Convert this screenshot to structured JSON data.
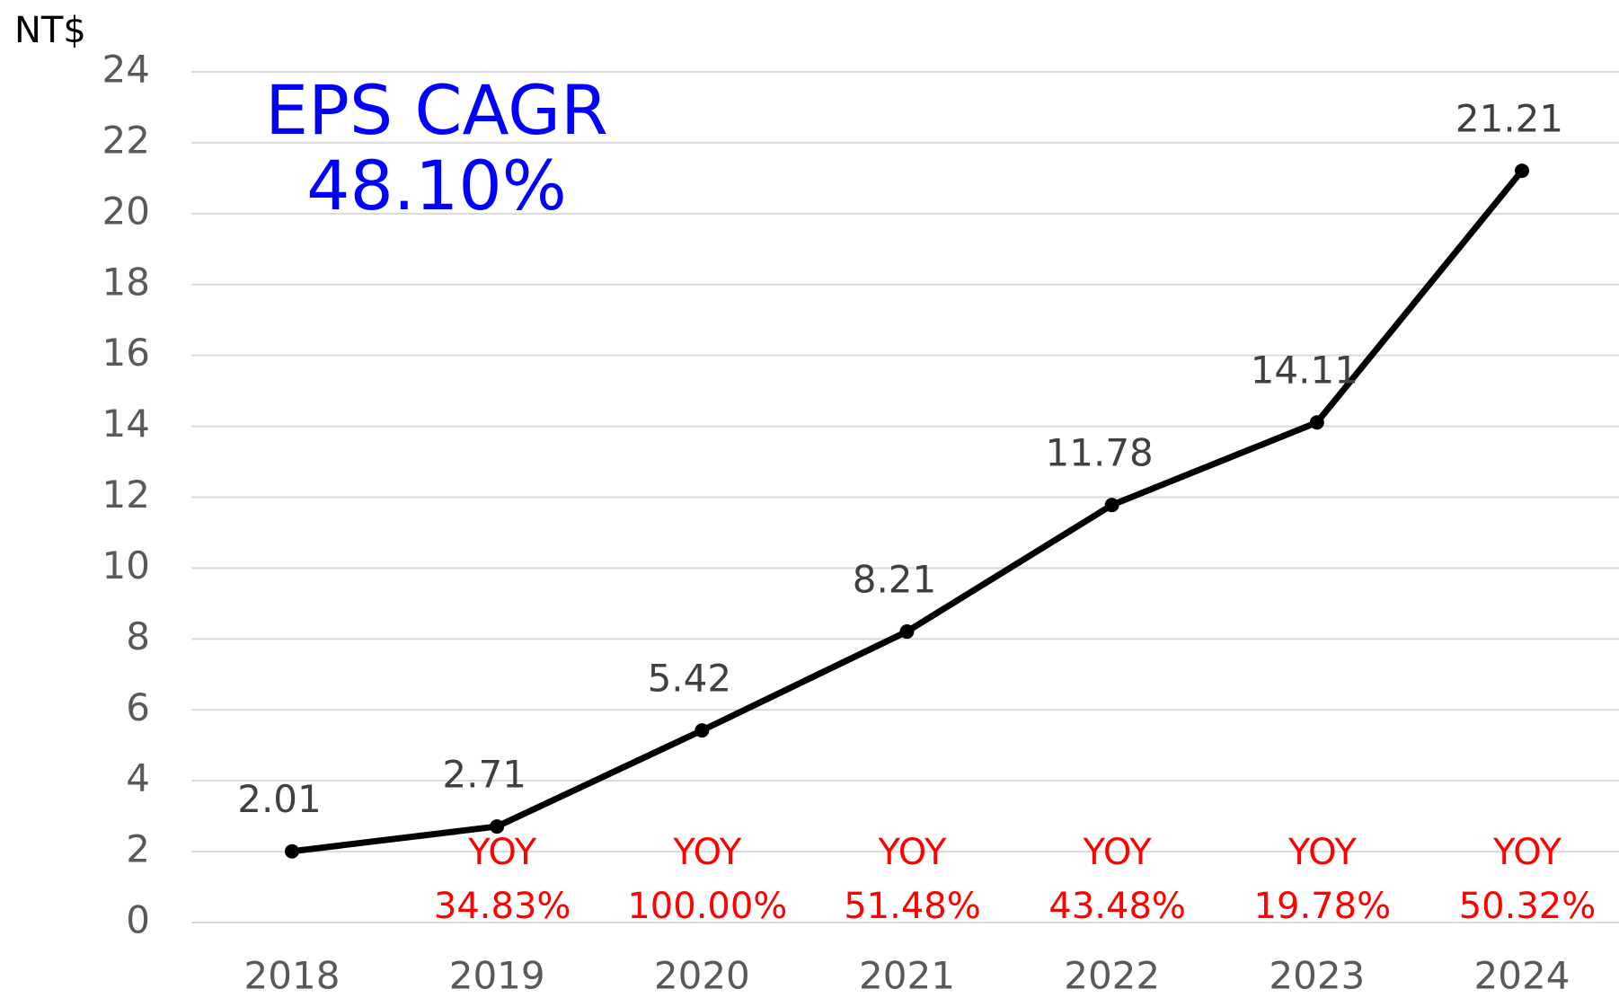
{
  "chart_data": {
    "type": "line",
    "y_unit": "NT$",
    "title": "EPS CAGR",
    "subtitle": "48.10%",
    "categories": [
      "2018",
      "2019",
      "2020",
      "2021",
      "2022",
      "2023",
      "2024"
    ],
    "values": [
      2.01,
      2.71,
      5.42,
      8.21,
      11.78,
      14.11,
      21.21
    ],
    "color": "#000000",
    "ylim": [
      0,
      24
    ],
    "yticks": [
      0,
      2,
      4,
      6,
      8,
      10,
      12,
      14,
      16,
      18,
      20,
      22,
      24
    ],
    "grid": true,
    "annotations": [
      {
        "category": "2019",
        "title": "YOY",
        "label": "34.83%"
      },
      {
        "category": "2020",
        "title": "YOY",
        "label": "100.00%"
      },
      {
        "category": "2021",
        "title": "YOY",
        "label": "51.48%"
      },
      {
        "category": "2022",
        "title": "YOY",
        "label": "43.48%"
      },
      {
        "category": "2023",
        "title": "YOY",
        "label": "19.78%"
      },
      {
        "category": "2024",
        "title": "YOY",
        "label": "50.32%"
      }
    ]
  }
}
